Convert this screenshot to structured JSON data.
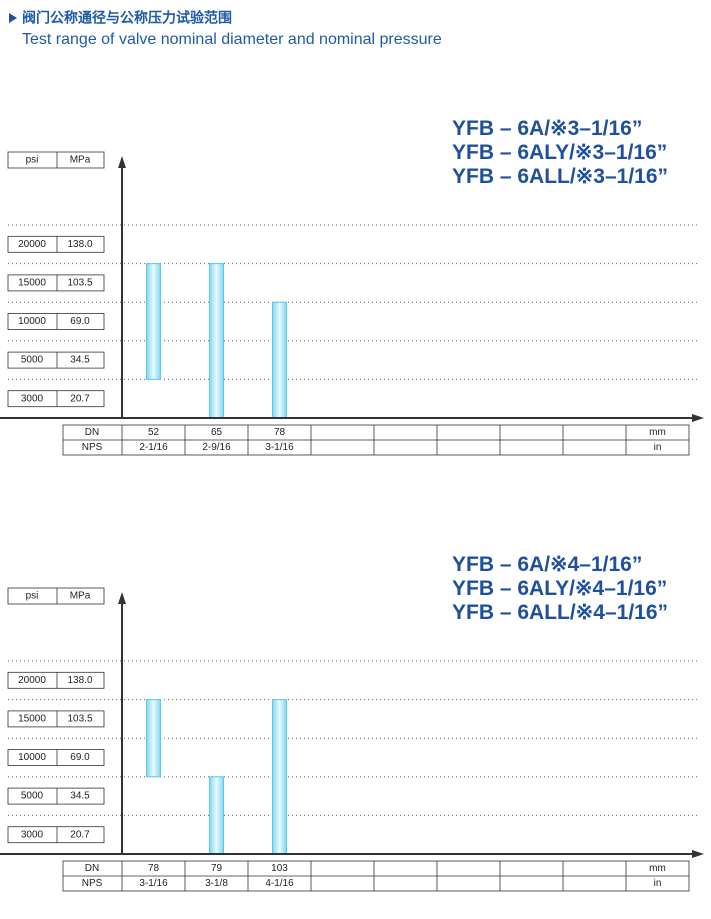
{
  "header": {
    "title": "阀门公称通径与公称压力试验范围",
    "subtitle": "Test range of valve nominal diameter and nominal pressure"
  },
  "chart_data": [
    {
      "type": "range-bar",
      "models": [
        "YFB – 6A/※3–1/16”",
        "YFB – 6ALY/※3–1/16”",
        "YFB – 6ALL/※3–1/16”"
      ],
      "y_header": [
        "psi",
        "MPa"
      ],
      "levels": [
        {
          "psi": 20000,
          "mpa": {
            "value": 138,
            "label": "138.0"
          }
        },
        {
          "psi": 15000,
          "mpa": 103.5
        },
        {
          "psi": 10000,
          "mpa": {
            "value": 69,
            "label": "69.0"
          }
        },
        {
          "psi": 5000,
          "mpa": 34.5
        },
        {
          "psi": 3000,
          "mpa": 20.7
        }
      ],
      "x_header": [
        "DN",
        "NPS"
      ],
      "units": [
        "mm",
        "in"
      ],
      "dn": [
        52,
        65,
        78
      ],
      "nps": [
        "2-1/16",
        "2-9/16",
        "3-1/16"
      ],
      "bars": [
        {
          "low": 5000,
          "high": 15000
        },
        {
          "low": 3000,
          "high": 15000
        },
        {
          "low": 3000,
          "high": 10000
        }
      ],
      "color": "#5cc9ec"
    },
    {
      "type": "range-bar",
      "models": [
        "YFB – 6A/※4–1/16”",
        "YFB – 6ALY/※4–1/16”",
        "YFB – 6ALL/※4–1/16”"
      ],
      "y_header": [
        "psi",
        "MPa"
      ],
      "levels": [
        {
          "psi": 20000,
          "mpa": {
            "value": 138,
            "label": "138.0"
          }
        },
        {
          "psi": 15000,
          "mpa": 103.5
        },
        {
          "psi": 10000,
          "mpa": {
            "value": 69,
            "label": "69.0"
          }
        },
        {
          "psi": 5000,
          "mpa": 34.5
        },
        {
          "psi": 3000,
          "mpa": 20.7
        }
      ],
      "x_header": [
        "DN",
        "NPS"
      ],
      "units": [
        "mm",
        "in"
      ],
      "dn": [
        78,
        79,
        103
      ],
      "nps": [
        "3-1/16",
        "3-1/8",
        "4-1/16"
      ],
      "bars": [
        {
          "low": 10000,
          "high": 15000
        },
        {
          "low": 3000,
          "high": 5000
        },
        {
          "low": 3000,
          "high": 15000
        }
      ],
      "color": "#5cc9ec"
    }
  ]
}
